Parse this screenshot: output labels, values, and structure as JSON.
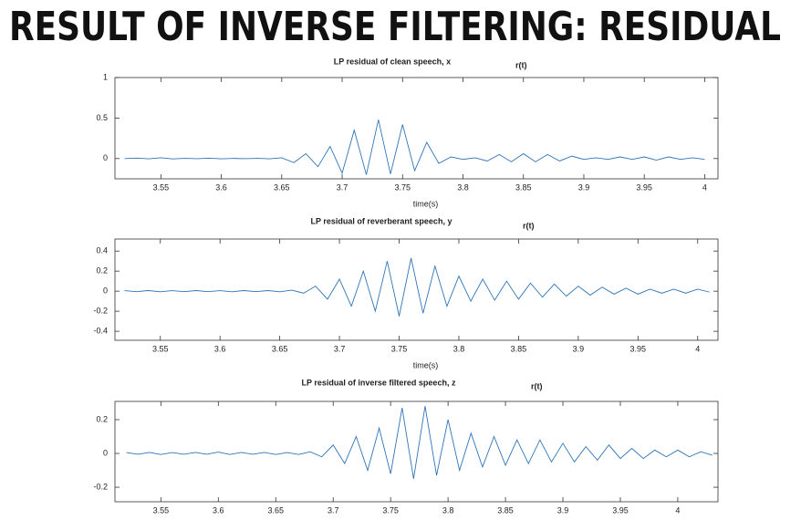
{
  "slide_title": "RESULT OF INVERSE FILTERING: RESIDUAL",
  "chart_data": [
    {
      "type": "line",
      "title": "LP residual of clean speech, x",
      "subscript": "r(t)",
      "x_label": "time(s)",
      "color": "#2f74b5",
      "xlim": [
        3.512,
        4.011
      ],
      "xticks": [
        3.55,
        3.6,
        3.65,
        3.7,
        3.75,
        3.8,
        3.85,
        3.9,
        3.95,
        4
      ],
      "ylim": [
        -0.25,
        1
      ],
      "yticks": [
        0,
        0.5,
        1
      ],
      "x": [
        3.52,
        3.53,
        3.54,
        3.55,
        3.56,
        3.57,
        3.58,
        3.59,
        3.6,
        3.61,
        3.62,
        3.63,
        3.64,
        3.65,
        3.66,
        3.67,
        3.68,
        3.69,
        3.7,
        3.71,
        3.72,
        3.73,
        3.74,
        3.75,
        3.76,
        3.77,
        3.78,
        3.79,
        3.8,
        3.81,
        3.82,
        3.83,
        3.84,
        3.85,
        3.86,
        3.87,
        3.88,
        3.89,
        3.9,
        3.91,
        3.92,
        3.93,
        3.94,
        3.95,
        3.96,
        3.97,
        3.98,
        3.99,
        4.0
      ],
      "values": [
        0,
        0.005,
        -0.003,
        0.01,
        -0.004,
        0.003,
        -0.002,
        0.004,
        -0.003,
        0.002,
        -0.002,
        0.003,
        -0.003,
        0.01,
        -0.05,
        0.06,
        -0.1,
        0.15,
        -0.18,
        0.35,
        -0.2,
        0.48,
        -0.19,
        0.42,
        -0.15,
        0.2,
        -0.06,
        0.02,
        -0.01,
        0.01,
        -0.03,
        0.05,
        -0.04,
        0.06,
        -0.04,
        0.05,
        -0.03,
        0.03,
        -0.01,
        0.01,
        -0.01,
        0.02,
        -0.01,
        0.02,
        -0.02,
        0.02,
        -0.01,
        0.01,
        -0.01
      ]
    },
    {
      "type": "line",
      "title": "LP residual of reverberant speech, y",
      "subscript": "r(t)",
      "x_label": "time(s)",
      "color": "#2f74b5",
      "xlim": [
        3.512,
        4.017
      ],
      "xticks": [
        3.55,
        3.6,
        3.65,
        3.7,
        3.75,
        3.8,
        3.85,
        3.9,
        3.95,
        4
      ],
      "ylim": [
        -0.49,
        0.52
      ],
      "yticks": [
        -0.4,
        -0.2,
        0,
        0.2,
        0.4
      ],
      "x": [
        3.52,
        3.53,
        3.54,
        3.55,
        3.56,
        3.57,
        3.58,
        3.59,
        3.6,
        3.61,
        3.62,
        3.63,
        3.64,
        3.65,
        3.66,
        3.67,
        3.68,
        3.69,
        3.7,
        3.71,
        3.72,
        3.73,
        3.74,
        3.75,
        3.76,
        3.77,
        3.78,
        3.79,
        3.8,
        3.81,
        3.82,
        3.83,
        3.84,
        3.85,
        3.86,
        3.87,
        3.88,
        3.89,
        3.9,
        3.91,
        3.92,
        3.93,
        3.94,
        3.95,
        3.96,
        3.97,
        3.98,
        3.99,
        4.0,
        4.01
      ],
      "values": [
        0.005,
        -0.005,
        0.006,
        -0.006,
        0.005,
        -0.005,
        0.006,
        -0.005,
        0.005,
        -0.006,
        0.006,
        -0.005,
        0.006,
        -0.006,
        0.01,
        -0.02,
        0.05,
        -0.08,
        0.12,
        -0.15,
        0.2,
        -0.2,
        0.3,
        -0.25,
        0.33,
        -0.22,
        0.25,
        -0.15,
        0.15,
        -0.1,
        0.12,
        -0.09,
        0.1,
        -0.08,
        0.08,
        -0.06,
        0.07,
        -0.05,
        0.05,
        -0.04,
        0.04,
        -0.03,
        0.03,
        -0.03,
        0.02,
        -0.02,
        0.02,
        -0.02,
        0.02,
        -0.01
      ]
    },
    {
      "type": "line",
      "title": "LP residual of inverse filtered speech, z",
      "subscript": "r(t)",
      "color": "#2f74b5",
      "xlim": [
        3.51,
        4.035
      ],
      "xticks": [
        3.55,
        3.6,
        3.65,
        3.7,
        3.75,
        3.8,
        3.85,
        3.9,
        3.95,
        4
      ],
      "ylim": [
        -0.286,
        0.308
      ],
      "yticks": [
        -0.2,
        0,
        0.2
      ],
      "x": [
        3.52,
        3.53,
        3.54,
        3.55,
        3.56,
        3.57,
        3.58,
        3.59,
        3.6,
        3.61,
        3.62,
        3.63,
        3.64,
        3.65,
        3.66,
        3.67,
        3.68,
        3.69,
        3.7,
        3.71,
        3.72,
        3.73,
        3.74,
        3.75,
        3.76,
        3.77,
        3.78,
        3.79,
        3.8,
        3.81,
        3.82,
        3.83,
        3.84,
        3.85,
        3.86,
        3.87,
        3.88,
        3.89,
        3.9,
        3.91,
        3.92,
        3.93,
        3.94,
        3.95,
        3.96,
        3.97,
        3.98,
        3.99,
        4.0,
        4.01,
        4.02,
        4.03
      ],
      "values": [
        0.005,
        -0.005,
        0.006,
        -0.006,
        0.005,
        -0.005,
        0.006,
        -0.005,
        0.008,
        -0.006,
        0.006,
        -0.005,
        0.006,
        -0.006,
        0.005,
        -0.006,
        0.01,
        -0.02,
        0.05,
        -0.06,
        0.1,
        -0.1,
        0.15,
        -0.12,
        0.27,
        -0.15,
        0.28,
        -0.13,
        0.2,
        -0.1,
        0.12,
        -0.08,
        0.1,
        -0.07,
        0.08,
        -0.06,
        0.08,
        -0.05,
        0.06,
        -0.05,
        0.04,
        -0.04,
        0.05,
        -0.03,
        0.03,
        -0.03,
        0.02,
        -0.02,
        0.02,
        -0.02,
        0.01,
        -0.01
      ]
    }
  ]
}
